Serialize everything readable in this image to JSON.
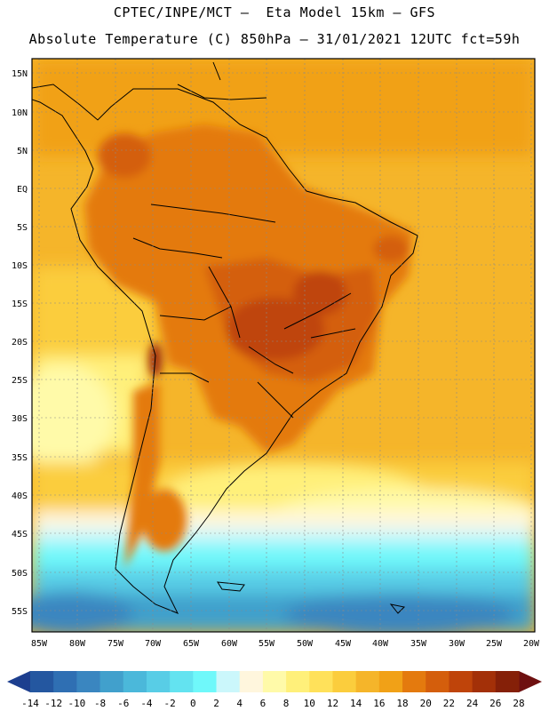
{
  "header": {
    "line1": "CPTEC/INPE/MCT –  Eta Model 15km – GFS",
    "line2": "Absolute Temperature (C) 850hPa – 31/01/2021 12UTC fct=59h"
  },
  "axes": {
    "lat_labels": [
      "15N",
      "10N",
      "5N",
      "EQ",
      "5S",
      "10S",
      "15S",
      "20S",
      "25S",
      "30S",
      "35S",
      "40S",
      "45S",
      "50S",
      "55S"
    ],
    "lon_labels": [
      "85W",
      "80W",
      "75W",
      "70W",
      "65W",
      "60W",
      "55W",
      "50W",
      "45W",
      "40W",
      "35W",
      "30W",
      "25W",
      "20W"
    ]
  },
  "legend": {
    "ticks": [
      "-14",
      "-12",
      "-10",
      "-8",
      "-6",
      "-4",
      "-2",
      "0",
      "2",
      "4",
      "6",
      "8",
      "10",
      "12",
      "14",
      "16",
      "18",
      "20",
      "22",
      "24",
      "26",
      "28"
    ],
    "colors": [
      "#1d3f8f",
      "#2457a0",
      "#2f6fb3",
      "#3a86c0",
      "#41a0cc",
      "#4bb8da",
      "#58cde6",
      "#63e3f0",
      "#6ff8fa",
      "#cbf7fb",
      "#fff6dd",
      "#fffaa9",
      "#fff07a",
      "#ffe15a",
      "#fbcd3d",
      "#f5b52a",
      "#f1a117",
      "#e47a0e",
      "#d45e0c",
      "#bf440a",
      "#a33008",
      "#852008",
      "#6e1010"
    ]
  }
}
